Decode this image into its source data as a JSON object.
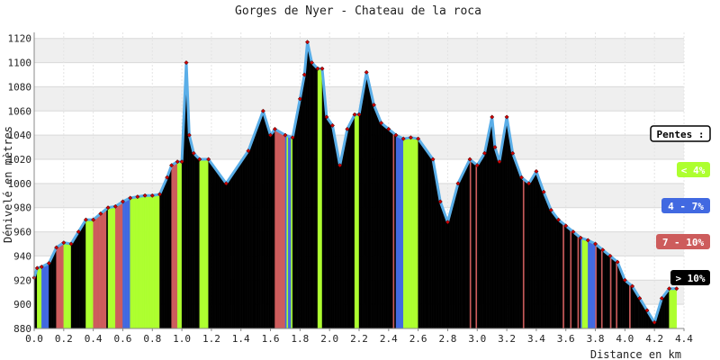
{
  "chart_data": {
    "type": "area",
    "title": "Gorges de Nyer - Chateau de la roca",
    "xlabel": "Distance en km",
    "ylabel": "Dénivelé en mètres",
    "xlim": [
      0,
      4.4
    ],
    "ylim": [
      880,
      1125
    ],
    "x_ticks": [
      "0.0",
      "0.2",
      "0.4",
      "0.6",
      "0.8",
      "1.0",
      "1.2",
      "1.4",
      "1.6",
      "1.8",
      "2.0",
      "2.2",
      "2.4",
      "2.6",
      "2.8",
      "3.0",
      "3.2",
      "3.4",
      "3.6",
      "3.8",
      "4.0",
      "4.2",
      "4.4"
    ],
    "y_ticks": [
      "880",
      "900",
      "920",
      "940",
      "960",
      "980",
      "1000",
      "1020",
      "1040",
      "1060",
      "1080",
      "1100",
      "1120"
    ],
    "grid": true,
    "legend_position": "right",
    "legend": {
      "title": "Pentes :",
      "items": [
        {
          "label": "< 4%",
          "color": "#adff2f",
          "text_color": "#ffffff"
        },
        {
          "label": "4 - 7%",
          "color": "#4169e1",
          "text_color": "#ffffff"
        },
        {
          "label": "7 - 10%",
          "color": "#cd5c5c",
          "text_color": "#ffffff"
        },
        {
          "label": "> 10%",
          "color": "#000000",
          "text_color": "#ffffff"
        }
      ]
    },
    "colors": {
      "line": "#5aaee8",
      "marker": "#cc0000",
      "gentle": "#adff2f",
      "moderate": "#4169e1",
      "steep": "#cd5c5c",
      "very_steep": "#000000"
    },
    "series": [
      {
        "x": [
          0.0,
          0.02,
          0.05,
          0.1,
          0.15,
          0.2,
          0.25,
          0.3,
          0.35,
          0.4,
          0.45,
          0.5,
          0.55,
          0.6,
          0.65,
          0.7,
          0.75,
          0.8,
          0.85,
          0.9,
          0.93,
          0.97,
          1.0,
          1.03,
          1.05,
          1.08,
          1.12,
          1.18,
          1.3,
          1.45,
          1.55,
          1.6,
          1.63,
          1.7,
          1.75,
          1.8,
          1.83,
          1.85,
          1.88,
          1.92,
          1.95,
          1.98,
          2.02,
          2.07,
          2.12,
          2.17,
          2.2,
          2.25,
          2.3,
          2.35,
          2.4,
          2.45,
          2.5,
          2.55,
          2.6,
          2.7,
          2.75,
          2.8,
          2.87,
          2.95,
          3.0,
          3.05,
          3.1,
          3.12,
          3.15,
          3.2,
          3.24,
          3.3,
          3.35,
          3.4,
          3.45,
          3.5,
          3.55,
          3.6,
          3.65,
          3.7,
          3.75,
          3.8,
          3.85,
          3.9,
          3.95,
          4.0,
          4.05,
          4.1,
          4.15,
          4.2,
          4.25,
          4.3,
          4.35
        ],
        "y": [
          922,
          930,
          931,
          934,
          947,
          951,
          950,
          960,
          970,
          970,
          975,
          980,
          981,
          985,
          988,
          989,
          990,
          990,
          991,
          1005,
          1015,
          1018,
          1018,
          1100,
          1040,
          1025,
          1020,
          1020,
          1000,
          1027,
          1060,
          1040,
          1045,
          1040,
          1038,
          1070,
          1090,
          1117,
          1100,
          1095,
          1095,
          1055,
          1048,
          1015,
          1045,
          1057,
          1057,
          1092,
          1065,
          1050,
          1045,
          1040,
          1037,
          1038,
          1037,
          1020,
          985,
          968,
          1000,
          1020,
          1015,
          1025,
          1055,
          1030,
          1018,
          1055,
          1025,
          1005,
          1000,
          1010,
          993,
          978,
          970,
          965,
          960,
          955,
          953,
          950,
          945,
          940,
          935,
          920,
          915,
          905,
          895,
          885,
          905,
          913,
          913
        ]
      }
    ]
  }
}
